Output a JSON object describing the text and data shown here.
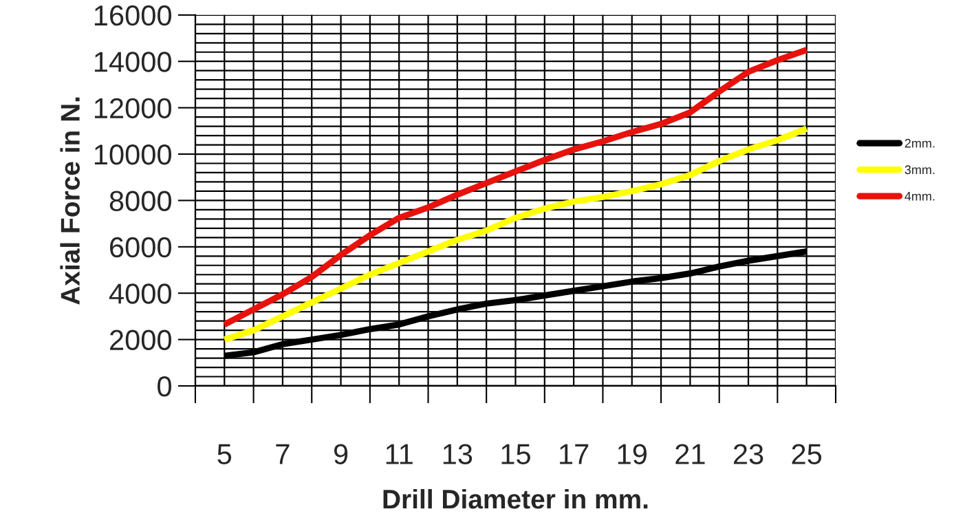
{
  "chart_data": {
    "type": "line",
    "xlabel": "Drill Diameter in mm.",
    "ylabel": "Axial Force in N.",
    "x": [
      5,
      6,
      7,
      8,
      9,
      10,
      11,
      12,
      13,
      14,
      15,
      16,
      17,
      18,
      19,
      20,
      21,
      22,
      23,
      24,
      25
    ],
    "series": [
      {
        "name": "2mm.",
        "color": "#000000",
        "values": [
          1300,
          1450,
          1800,
          2000,
          2200,
          2450,
          2650,
          3000,
          3300,
          3550,
          3700,
          3900,
          4100,
          4300,
          4500,
          4650,
          4850,
          5150,
          5400,
          5600,
          5800
        ]
      },
      {
        "name": "3mm.",
        "color": "#ffff00",
        "values": [
          2000,
          2400,
          3000,
          3600,
          4200,
          4800,
          5300,
          5800,
          6300,
          6700,
          7250,
          7650,
          7950,
          8150,
          8400,
          8700,
          9100,
          9700,
          10200,
          10600,
          11100
        ]
      },
      {
        "name": "4mm.",
        "color": "#e8120c",
        "values": [
          2650,
          3300,
          3950,
          4700,
          5650,
          6500,
          7250,
          7700,
          8250,
          8750,
          9250,
          9750,
          10200,
          10550,
          10950,
          11300,
          11800,
          12700,
          13550,
          14050,
          14500
        ]
      }
    ],
    "xlim": [
      4,
      26
    ],
    "xticks": [
      {
        "value": 4,
        "label": null
      },
      {
        "value": 5,
        "label": "5"
      },
      {
        "value": 6,
        "label": null
      },
      {
        "value": 7,
        "label": "7"
      },
      {
        "value": 8,
        "label": null
      },
      {
        "value": 9,
        "label": "9"
      },
      {
        "value": 10,
        "label": null
      },
      {
        "value": 11,
        "label": "11"
      },
      {
        "value": 12,
        "label": null
      },
      {
        "value": 13,
        "label": "13"
      },
      {
        "value": 14,
        "label": null
      },
      {
        "value": 15,
        "label": "15"
      },
      {
        "value": 16,
        "label": null
      },
      {
        "value": 17,
        "label": "17"
      },
      {
        "value": 18,
        "label": null
      },
      {
        "value": 19,
        "label": "19"
      },
      {
        "value": 20,
        "label": null
      },
      {
        "value": 21,
        "label": "21"
      },
      {
        "value": 22,
        "label": null
      },
      {
        "value": 23,
        "label": "23"
      },
      {
        "value": 24,
        "label": null
      },
      {
        "value": 25,
        "label": "25"
      },
      {
        "value": 26,
        "label": null
      }
    ],
    "ylim": [
      0,
      16000
    ],
    "yticks": [
      0,
      {
        "value": 400,
        "label": null
      },
      {
        "value": 800,
        "label": null
      },
      {
        "value": 1200,
        "label": null
      },
      {
        "value": 1600,
        "label": null
      },
      2000,
      {
        "value": 2400,
        "label": null
      },
      {
        "value": 2800,
        "label": null
      },
      {
        "value": 3200,
        "label": null
      },
      {
        "value": 3600,
        "label": null
      },
      4000,
      {
        "value": 4400,
        "label": null
      },
      {
        "value": 4800,
        "label": null
      },
      {
        "value": 5200,
        "label": null
      },
      {
        "value": 5600,
        "label": null
      },
      6000,
      {
        "value": 6400,
        "label": null
      },
      {
        "value": 6800,
        "label": null
      },
      {
        "value": 7200,
        "label": null
      },
      {
        "value": 7600,
        "label": null
      },
      8000,
      {
        "value": 8400,
        "label": null
      },
      {
        "value": 8800,
        "label": null
      },
      {
        "value": 9200,
        "label": null
      },
      {
        "value": 9600,
        "label": null
      },
      10000,
      {
        "value": 10400,
        "label": null
      },
      {
        "value": 10800,
        "label": null
      },
      {
        "value": 11200,
        "label": null
      },
      {
        "value": 11600,
        "label": null
      },
      12000,
      {
        "value": 12400,
        "label": null
      },
      {
        "value": 12800,
        "label": null
      },
      {
        "value": 13200,
        "label": null
      },
      {
        "value": 13600,
        "label": null
      },
      14000,
      {
        "value": 14400,
        "label": null
      },
      {
        "value": 14800,
        "label": null
      },
      {
        "value": 15200,
        "label": null
      },
      {
        "value": 15600,
        "label": null
      },
      16000
    ],
    "grid": true,
    "legend": "right",
    "marker": "none",
    "line_style": "solid"
  }
}
